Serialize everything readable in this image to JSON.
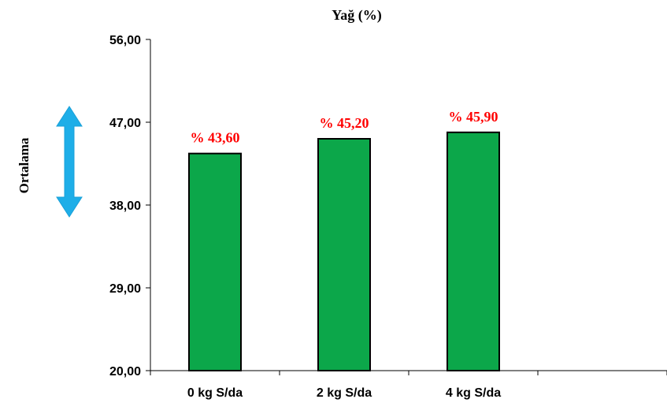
{
  "chart_data": {
    "type": "bar",
    "title": "Yağ (%)",
    "ylabel": "Ortalama",
    "xlabel": "",
    "categories": [
      "0 kg S/da",
      "2 kg S/da",
      "4 kg S/da"
    ],
    "values": [
      43.6,
      45.2,
      45.9
    ],
    "data_labels": [
      "% 43,60",
      "% 45,20",
      "% 45,90"
    ],
    "ylim": [
      20,
      56
    ],
    "yticks": [
      20,
      29,
      38,
      47,
      56
    ],
    "ytick_labels": [
      "20,00",
      "29,00",
      "38,00",
      "47,00",
      "56,00"
    ],
    "grid": false,
    "legend": "none",
    "colors": {
      "bar_fill": "#0ca74a",
      "bar_stroke": "#000000",
      "data_label": "#ff0000",
      "arrow": "#1eaee8"
    },
    "annotation_icon": "double-headed-vertical-arrow"
  }
}
